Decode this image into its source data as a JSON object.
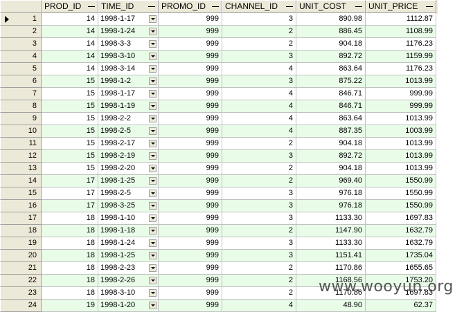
{
  "columns": [
    "PROD_ID",
    "TIME_ID",
    "PROMO_ID",
    "CHANNEL_ID",
    "UNIT_COST",
    "UNIT_PRICE"
  ],
  "rows": [
    {
      "n": "1",
      "prod": "14",
      "time": "1998-1-17",
      "promo": "999",
      "channel": "3",
      "cost": "890.98",
      "price": "1112.87"
    },
    {
      "n": "2",
      "prod": "14",
      "time": "1998-1-24",
      "promo": "999",
      "channel": "2",
      "cost": "886.45",
      "price": "1108.99"
    },
    {
      "n": "3",
      "prod": "14",
      "time": "1998-3-3",
      "promo": "999",
      "channel": "2",
      "cost": "904.18",
      "price": "1176.23"
    },
    {
      "n": "4",
      "prod": "14",
      "time": "1998-3-10",
      "promo": "999",
      "channel": "3",
      "cost": "892.72",
      "price": "1159.99"
    },
    {
      "n": "5",
      "prod": "14",
      "time": "1998-3-14",
      "promo": "999",
      "channel": "4",
      "cost": "863.64",
      "price": "1176.23"
    },
    {
      "n": "6",
      "prod": "15",
      "time": "1998-1-2",
      "promo": "999",
      "channel": "3",
      "cost": "875.22",
      "price": "1013.99"
    },
    {
      "n": "7",
      "prod": "15",
      "time": "1998-1-17",
      "promo": "999",
      "channel": "4",
      "cost": "846.71",
      "price": "999.99"
    },
    {
      "n": "8",
      "prod": "15",
      "time": "1998-1-19",
      "promo": "999",
      "channel": "4",
      "cost": "846.71",
      "price": "999.99"
    },
    {
      "n": "9",
      "prod": "15",
      "time": "1998-2-2",
      "promo": "999",
      "channel": "4",
      "cost": "863.64",
      "price": "1013.99"
    },
    {
      "n": "10",
      "prod": "15",
      "time": "1998-2-5",
      "promo": "999",
      "channel": "4",
      "cost": "887.35",
      "price": "1003.99"
    },
    {
      "n": "11",
      "prod": "15",
      "time": "1998-2-17",
      "promo": "999",
      "channel": "2",
      "cost": "904.18",
      "price": "1013.99"
    },
    {
      "n": "12",
      "prod": "15",
      "time": "1998-2-19",
      "promo": "999",
      "channel": "3",
      "cost": "892.72",
      "price": "1013.99"
    },
    {
      "n": "13",
      "prod": "15",
      "time": "1998-2-20",
      "promo": "999",
      "channel": "2",
      "cost": "904.18",
      "price": "1013.99"
    },
    {
      "n": "14",
      "prod": "17",
      "time": "1998-1-25",
      "promo": "999",
      "channel": "2",
      "cost": "969.40",
      "price": "1550.99"
    },
    {
      "n": "15",
      "prod": "17",
      "time": "1998-2-5",
      "promo": "999",
      "channel": "3",
      "cost": "976.18",
      "price": "1550.99"
    },
    {
      "n": "16",
      "prod": "17",
      "time": "1998-3-25",
      "promo": "999",
      "channel": "3",
      "cost": "976.18",
      "price": "1550.99"
    },
    {
      "n": "17",
      "prod": "18",
      "time": "1998-1-10",
      "promo": "999",
      "channel": "3",
      "cost": "1133.30",
      "price": "1697.83"
    },
    {
      "n": "18",
      "prod": "18",
      "time": "1998-1-18",
      "promo": "999",
      "channel": "2",
      "cost": "1147.90",
      "price": "1632.79"
    },
    {
      "n": "19",
      "prod": "18",
      "time": "1998-1-24",
      "promo": "999",
      "channel": "3",
      "cost": "1133.30",
      "price": "1632.79"
    },
    {
      "n": "20",
      "prod": "18",
      "time": "1998-1-25",
      "promo": "999",
      "channel": "3",
      "cost": "1151.41",
      "price": "1735.04"
    },
    {
      "n": "21",
      "prod": "18",
      "time": "1998-2-23",
      "promo": "999",
      "channel": "2",
      "cost": "1170.86",
      "price": "1655.65"
    },
    {
      "n": "22",
      "prod": "18",
      "time": "1998-2-26",
      "promo": "999",
      "channel": "2",
      "cost": "1168.56",
      "price": "1753.20"
    },
    {
      "n": "23",
      "prod": "18",
      "time": "1998-3-10",
      "promo": "999",
      "channel": "2",
      "cost": "1170.86",
      "price": "1697.83"
    },
    {
      "n": "24",
      "prod": "19",
      "time": "1998-1-20",
      "promo": "999",
      "channel": "4",
      "cost": "48.90",
      "price": "62.37"
    }
  ],
  "watermark": "www.wooyun.org",
  "colors": {
    "alt_row": "#e8fce8",
    "header_bg": "#ece9d8"
  }
}
